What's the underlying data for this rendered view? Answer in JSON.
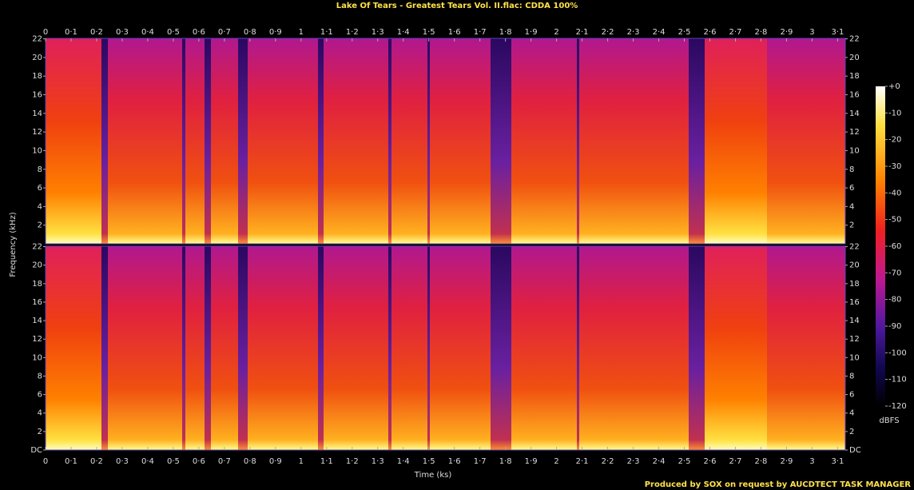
{
  "chart_data": [
    {
      "type": "spectrogram",
      "title": "Lake Of Tears - Greatest Tears Vol. II.flac: CDDA 100%",
      "xlabel": "Time (ks)",
      "ylabel": "Frequency (kHz)",
      "xlim": [
        0,
        3.13
      ],
      "xticks": [
        0,
        {
          "value": 0.1,
          "label": "0·1"
        },
        {
          "value": 0.2,
          "label": "0·2"
        },
        {
          "value": 0.3,
          "label": "0·3"
        },
        {
          "value": 0.4,
          "label": "0·4"
        },
        {
          "value": 0.5,
          "label": "0·5"
        },
        {
          "value": 0.6,
          "label": "0·6"
        },
        {
          "value": 0.7,
          "label": "0·7"
        },
        {
          "value": 0.8,
          "label": "0·8"
        },
        {
          "value": 0.9,
          "label": "0·9"
        },
        1,
        {
          "value": 1.1,
          "label": "1·1"
        },
        {
          "value": 1.2,
          "label": "1·2"
        },
        {
          "value": 1.3,
          "label": "1·3"
        },
        {
          "value": 1.4,
          "label": "1·4"
        },
        {
          "value": 1.5,
          "label": "1·5"
        },
        {
          "value": 1.6,
          "label": "1·6"
        },
        {
          "value": 1.7,
          "label": "1·7"
        },
        {
          "value": 1.8,
          "label": "1·8"
        },
        {
          "value": 1.9,
          "label": "1·9"
        },
        2,
        {
          "value": 2.1,
          "label": "2·1"
        },
        {
          "value": 2.2,
          "label": "2·2"
        },
        {
          "value": 2.3,
          "label": "2·3"
        },
        {
          "value": 2.4,
          "label": "2·4"
        },
        {
          "value": 2.5,
          "label": "2·5"
        },
        {
          "value": 2.6,
          "label": "2·6"
        },
        {
          "value": 2.7,
          "label": "2·7"
        },
        {
          "value": 2.8,
          "label": "2·8"
        },
        {
          "value": 2.9,
          "label": "2·9"
        },
        3,
        {
          "value": 3.1,
          "label": "3·1"
        }
      ],
      "ylim": [
        0,
        22.05
      ],
      "yticks": [
        2,
        4,
        6,
        8,
        10,
        12,
        14,
        16,
        18,
        20,
        22
      ]
    },
    {
      "type": "spectrogram",
      "xlim": [
        0,
        3.13
      ],
      "xticks": [
        0,
        {
          "value": 0.1,
          "label": "0·1"
        },
        {
          "value": 0.2,
          "label": "0·2"
        },
        {
          "value": 0.3,
          "label": "0·3"
        },
        {
          "value": 0.4,
          "label": "0·4"
        },
        {
          "value": 0.5,
          "label": "0·5"
        },
        {
          "value": 0.6,
          "label": "0·6"
        },
        {
          "value": 0.7,
          "label": "0·7"
        },
        {
          "value": 0.8,
          "label": "0·8"
        },
        {
          "value": 0.9,
          "label": "0·9"
        },
        1,
        {
          "value": 1.1,
          "label": "1·1"
        },
        {
          "value": 1.2,
          "label": "1·2"
        },
        {
          "value": 1.3,
          "label": "1·3"
        },
        {
          "value": 1.4,
          "label": "1·4"
        },
        {
          "value": 1.5,
          "label": "1·5"
        },
        {
          "value": 1.6,
          "label": "1·6"
        },
        {
          "value": 1.7,
          "label": "1·7"
        },
        {
          "value": 1.8,
          "label": "1·8"
        },
        {
          "value": 1.9,
          "label": "1·9"
        },
        2,
        {
          "value": 2.1,
          "label": "2·1"
        },
        {
          "value": 2.2,
          "label": "2·2"
        },
        {
          "value": 2.3,
          "label": "2·3"
        },
        {
          "value": 2.4,
          "label": "2·4"
        },
        {
          "value": 2.5,
          "label": "2·5"
        },
        {
          "value": 2.6,
          "label": "2·6"
        },
        {
          "value": 2.7,
          "label": "2·7"
        },
        {
          "value": 2.8,
          "label": "2·8"
        },
        {
          "value": 2.9,
          "label": "2·9"
        },
        3,
        {
          "value": 3.1,
          "label": "3·1"
        }
      ],
      "ylim": [
        0,
        22.05
      ],
      "yticks": [
        {
          "value": 0,
          "label": "DC"
        },
        2,
        4,
        6,
        8,
        10,
        12,
        14,
        16,
        18,
        20,
        22
      ]
    }
  ],
  "colorbar": {
    "lim": [
      -120,
      0
    ],
    "label": "dBFS",
    "ticks": [
      {
        "value": 0,
        "label": "+0"
      },
      -10,
      -20,
      -30,
      -40,
      -50,
      -60,
      -70,
      -80,
      -90,
      -100,
      -110,
      -120
    ]
  },
  "footer": "Produced by SOX on request by AUCDTECT TASK MANAGER"
}
